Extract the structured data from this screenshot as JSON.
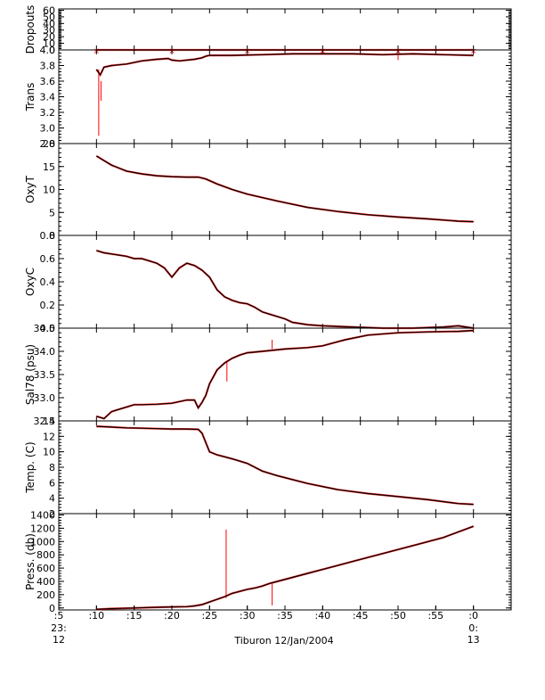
{
  "figure": {
    "caption": "Tiburon 12/Jan/2004",
    "x_ticks": [
      ":5",
      ":10",
      ":15",
      ":20",
      ":25",
      ":30",
      ":35",
      ":40",
      ":45",
      ":50",
      ":55",
      ":0"
    ],
    "x_tick_minutes": [
      5,
      10,
      15,
      20,
      25,
      30,
      35,
      40,
      45,
      50,
      55,
      60
    ],
    "hour_labels": [
      {
        "hour": "23:",
        "sub": "12",
        "minute": 5
      },
      {
        "hour": "0:",
        "sub": "13",
        "minute": 60
      }
    ],
    "x_range_minutes": [
      5,
      65
    ],
    "colors": {
      "trace": "#000000",
      "raw": "#ff0000",
      "axis": "#000000"
    }
  },
  "chart_data": [
    {
      "type": "line",
      "ylabel": "Dropouts",
      "ylim": [
        0,
        62
      ],
      "yticks": [
        0,
        10,
        20,
        30,
        40,
        50,
        60
      ],
      "series": [
        {
          "x": [
            10,
            20,
            30,
            40,
            50,
            60
          ],
          "values": [
            0,
            0,
            0,
            0,
            0,
            0
          ]
        }
      ],
      "spikes": []
    },
    {
      "type": "line",
      "ylabel": "Trans",
      "ylim": [
        2.8,
        4.0
      ],
      "yticks": [
        2.8,
        3.0,
        3.2,
        3.4,
        3.6,
        3.8,
        4.0
      ],
      "series": [
        {
          "x": [
            10,
            10.5,
            11,
            12,
            14,
            16,
            18,
            19.5,
            20,
            21,
            23,
            24,
            24.5,
            25,
            28,
            32,
            36,
            40,
            44,
            48,
            52,
            56,
            60
          ],
          "values": [
            3.75,
            3.68,
            3.78,
            3.8,
            3.82,
            3.86,
            3.88,
            3.89,
            3.87,
            3.86,
            3.88,
            3.9,
            3.92,
            3.93,
            3.93,
            3.94,
            3.95,
            3.95,
            3.95,
            3.94,
            3.95,
            3.94,
            3.93
          ]
        }
      ],
      "spikes": [
        {
          "x": 10.3,
          "from": 3.75,
          "to": 2.9
        },
        {
          "x": 10.6,
          "from": 3.6,
          "to": 3.35
        },
        {
          "x": 50.0,
          "from": 3.93,
          "to": 3.87
        }
      ]
    },
    {
      "type": "line",
      "ylabel": "OxyT",
      "ylim": [
        0,
        20
      ],
      "yticks": [
        0,
        5,
        10,
        15,
        20
      ],
      "series": [
        {
          "x": [
            10,
            11,
            12,
            14,
            16,
            18,
            20,
            22,
            23.5,
            24.5,
            26,
            28,
            30,
            34,
            38,
            42,
            46,
            50,
            54,
            58,
            60
          ],
          "values": [
            17.3,
            16.3,
            15.3,
            14.0,
            13.4,
            13.0,
            12.8,
            12.7,
            12.7,
            12.3,
            11.2,
            10.0,
            9.0,
            7.5,
            6.1,
            5.2,
            4.5,
            4.0,
            3.6,
            3.1,
            3.0
          ]
        }
      ],
      "spikes": []
    },
    {
      "type": "line",
      "ylabel": "OxyC",
      "ylim": [
        0,
        0.8
      ],
      "yticks": [
        0.0,
        0.2,
        0.4,
        0.6,
        0.8
      ],
      "series": [
        {
          "x": [
            10,
            11,
            12,
            13,
            14,
            15,
            16,
            17,
            18,
            19,
            20,
            21,
            22,
            23,
            24,
            25,
            26,
            27,
            28,
            29,
            30,
            31,
            32,
            33,
            34,
            35,
            36,
            38,
            40,
            44,
            48,
            52,
            56,
            58,
            60
          ],
          "values": [
            0.67,
            0.65,
            0.64,
            0.63,
            0.62,
            0.6,
            0.6,
            0.58,
            0.56,
            0.52,
            0.44,
            0.52,
            0.56,
            0.54,
            0.5,
            0.44,
            0.33,
            0.27,
            0.24,
            0.22,
            0.21,
            0.18,
            0.14,
            0.12,
            0.1,
            0.08,
            0.05,
            0.03,
            0.02,
            0.01,
            0.0,
            0.0,
            0.01,
            0.02,
            0.0
          ]
        }
      ],
      "spikes": []
    },
    {
      "type": "line",
      "ylabel": "Sal78 (psu)",
      "ylim": [
        32.5,
        34.5
      ],
      "yticks": [
        32.5,
        33.0,
        33.5,
        34.0,
        34.5
      ],
      "series": [
        {
          "x": [
            10,
            11,
            12,
            13,
            14,
            15,
            16,
            18,
            20,
            22,
            23,
            23.5,
            24,
            24.5,
            25,
            26,
            27,
            28,
            29,
            30,
            32,
            35,
            38,
            40,
            43,
            46,
            50,
            54,
            58,
            60
          ],
          "values": [
            32.6,
            32.55,
            32.7,
            32.75,
            32.8,
            32.85,
            32.85,
            32.86,
            32.88,
            32.95,
            32.95,
            32.78,
            32.9,
            33.05,
            33.3,
            33.6,
            33.75,
            33.85,
            33.92,
            33.97,
            34.0,
            34.05,
            34.08,
            34.12,
            34.25,
            34.35,
            34.4,
            34.42,
            34.43,
            34.45
          ]
        }
      ],
      "spikes": [
        {
          "x": 27.3,
          "from": 33.8,
          "to": 33.35
        },
        {
          "x": 33.3,
          "from": 34.05,
          "to": 34.25
        }
      ]
    },
    {
      "type": "line",
      "ylabel": "Temp. (C)",
      "ylim": [
        2,
        14
      ],
      "yticks": [
        2,
        4,
        6,
        8,
        10,
        12,
        14
      ],
      "series": [
        {
          "x": [
            10,
            12,
            14,
            16,
            18,
            20,
            22,
            23.5,
            24,
            24.5,
            25,
            26,
            28,
            30,
            32,
            34,
            38,
            42,
            46,
            50,
            54,
            58,
            60
          ],
          "values": [
            13.3,
            13.2,
            13.1,
            13.05,
            13.0,
            12.95,
            12.95,
            12.9,
            12.4,
            11.2,
            10.0,
            9.6,
            9.1,
            8.5,
            7.5,
            6.9,
            5.9,
            5.1,
            4.6,
            4.2,
            3.8,
            3.3,
            3.2
          ]
        }
      ],
      "spikes": []
    },
    {
      "type": "line",
      "ylabel": "Press. (db)",
      "ylim": [
        -30,
        1420
      ],
      "yticks": [
        0,
        200,
        400,
        600,
        800,
        1000,
        1200,
        1400
      ],
      "series": [
        {
          "x": [
            10,
            12,
            15,
            18,
            20,
            22,
            23,
            24,
            25,
            26,
            27,
            28,
            30,
            31,
            32,
            33,
            34,
            36,
            38,
            40,
            44,
            48,
            52,
            56,
            60
          ],
          "values": [
            -20,
            -10,
            0,
            10,
            15,
            20,
            30,
            50,
            90,
            130,
            170,
            220,
            280,
            300,
            330,
            370,
            400,
            460,
            520,
            580,
            700,
            820,
            940,
            1060,
            1230
          ]
        }
      ],
      "spikes": [
        {
          "x": 27.2,
          "from": 150,
          "to": 1180
        },
        {
          "x": 33.3,
          "from": 370,
          "to": 40
        }
      ]
    }
  ]
}
